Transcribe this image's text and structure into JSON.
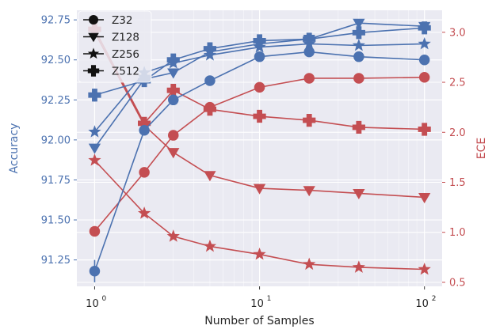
{
  "chart_data": {
    "type": "line",
    "xscale": "log",
    "x": [
      1,
      2,
      3,
      5,
      10,
      20,
      40,
      100
    ],
    "xlim": [
      0.78,
      128
    ],
    "xticks": [
      1,
      10,
      100
    ],
    "xticklabels": [
      "10",
      "10",
      "10"
    ],
    "xtickexponents": [
      "0",
      "1",
      "2"
    ],
    "xlabel": "Number of Samples",
    "grid": true,
    "background": "#eaeaf2",
    "left_axis": {
      "label": "Accuracy",
      "color": "#4c72b0",
      "lim": [
        91.085,
        92.81
      ],
      "ticks": [
        91.25,
        91.5,
        91.75,
        92.0,
        92.25,
        92.5,
        92.75
      ],
      "ticklabels": [
        "91.25",
        "91.50",
        "91.75",
        "92.00",
        "92.25",
        "92.50",
        "92.75"
      ]
    },
    "right_axis": {
      "label": "ECE",
      "color": "#c44e52",
      "lim": [
        0.46,
        3.22
      ],
      "ticks": [
        0.5,
        1.0,
        1.5,
        2.0,
        2.5,
        3.0
      ],
      "ticklabels": [
        "0.5",
        "1.0",
        "1.5",
        "2.0",
        "2.5",
        "3.0"
      ]
    },
    "legend": {
      "placement": "top-left",
      "entries": [
        {
          "name": "Z32",
          "marker": "circle"
        },
        {
          "name": "Z128",
          "marker": "triangle-down"
        },
        {
          "name": "Z256",
          "marker": "star"
        },
        {
          "name": "Z512",
          "marker": "plus"
        }
      ]
    },
    "accuracy_series": [
      {
        "name": "Z32",
        "marker": "circle",
        "values": [
          91.18,
          92.06,
          92.25,
          92.37,
          92.52,
          92.55,
          92.52,
          92.5
        ],
        "err": [
          0.07,
          0.0,
          0.0,
          0.0,
          0.0,
          0.0,
          0.0,
          0.0
        ]
      },
      {
        "name": "Z128",
        "marker": "triangle-down",
        "values": [
          91.95,
          92.38,
          92.42,
          92.55,
          92.6,
          92.63,
          92.73,
          92.71
        ],
        "err": [
          0.0,
          0.0,
          0.0,
          0.0,
          0.0,
          0.0,
          0.0,
          0.0
        ]
      },
      {
        "name": "Z256",
        "marker": "star",
        "values": [
          92.05,
          92.42,
          92.48,
          92.53,
          92.58,
          92.6,
          92.59,
          92.6
        ],
        "err": [
          0.0,
          0.0,
          0.0,
          0.0,
          0.0,
          0.0,
          0.0,
          0.0
        ]
      },
      {
        "name": "Z512",
        "marker": "plus",
        "values": [
          92.28,
          92.37,
          92.5,
          92.57,
          92.62,
          92.63,
          92.67,
          92.7
        ],
        "err": [
          0.04,
          0.0,
          0.0,
          0.04,
          0.0,
          0.0,
          0.0,
          0.0
        ]
      }
    ],
    "ece_series": [
      {
        "name": "Z32",
        "marker": "circle",
        "values": [
          1.01,
          1.6,
          1.97,
          2.25,
          2.45,
          2.54,
          2.54,
          2.55
        ]
      },
      {
        "name": "Z128",
        "marker": "triangle-down",
        "values": [
          3.0,
          2.07,
          1.8,
          1.57,
          1.44,
          1.42,
          1.39,
          1.35
        ]
      },
      {
        "name": "Z256",
        "marker": "star",
        "values": [
          1.72,
          1.19,
          0.96,
          0.86,
          0.78,
          0.68,
          0.65,
          0.63
        ]
      },
      {
        "name": "Z512",
        "marker": "plus",
        "values": [
          3.03,
          2.09,
          2.42,
          2.23,
          2.16,
          2.12,
          2.05,
          2.03
        ]
      }
    ]
  }
}
